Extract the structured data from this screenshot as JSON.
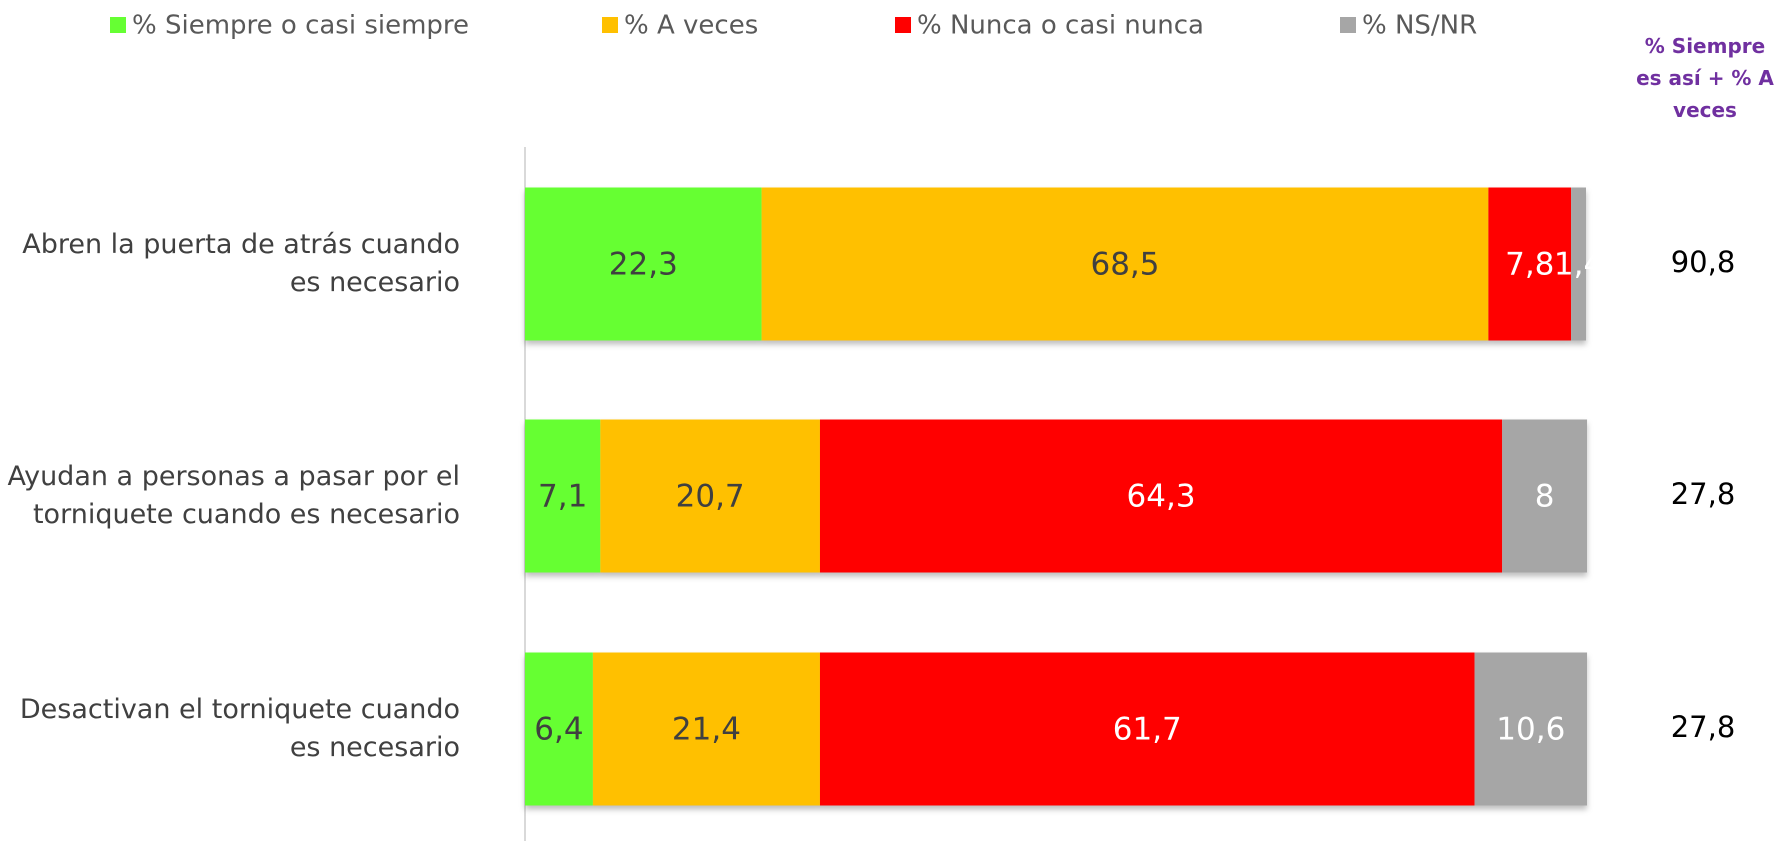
{
  "chart_data": {
    "type": "stacked-barh",
    "categories": [
      "Abren la puerta de atrás cuando es necesario",
      "Ayudan a personas a pasar por el torniquete cuando es necesario",
      "Desactivan el torniquete cuando es necesario"
    ],
    "series": [
      {
        "name": "% Siempre o casi siempre",
        "color": "#66ff33",
        "values": [
          22.3,
          7.1,
          6.4
        ],
        "value_labels": [
          "22,3",
          "7,1",
          "6,4"
        ]
      },
      {
        "name": "% A veces",
        "color": "#ffc000",
        "values": [
          68.5,
          20.7,
          21.4
        ],
        "value_labels": [
          "68,5",
          "20,7",
          "21,4"
        ]
      },
      {
        "name": "% Nunca o casi nunca",
        "color": "#ff0000",
        "values": [
          7.8,
          64.3,
          61.7
        ],
        "value_labels": [
          "7,8",
          "64,3",
          "61,7"
        ]
      },
      {
        "name": "% NS/NR",
        "color": "#a6a6a6",
        "values": [
          1.4,
          8,
          10.6
        ],
        "value_labels": [
          "1,4",
          "8",
          "10,6"
        ]
      }
    ],
    "xlim": [
      0,
      100
    ],
    "totals": {
      "title": "% Siempre es así + % A veces",
      "values": [
        90.8,
        27.8,
        27.8
      ],
      "value_labels": [
        "90,8",
        "27,8",
        "27,8"
      ]
    }
  }
}
